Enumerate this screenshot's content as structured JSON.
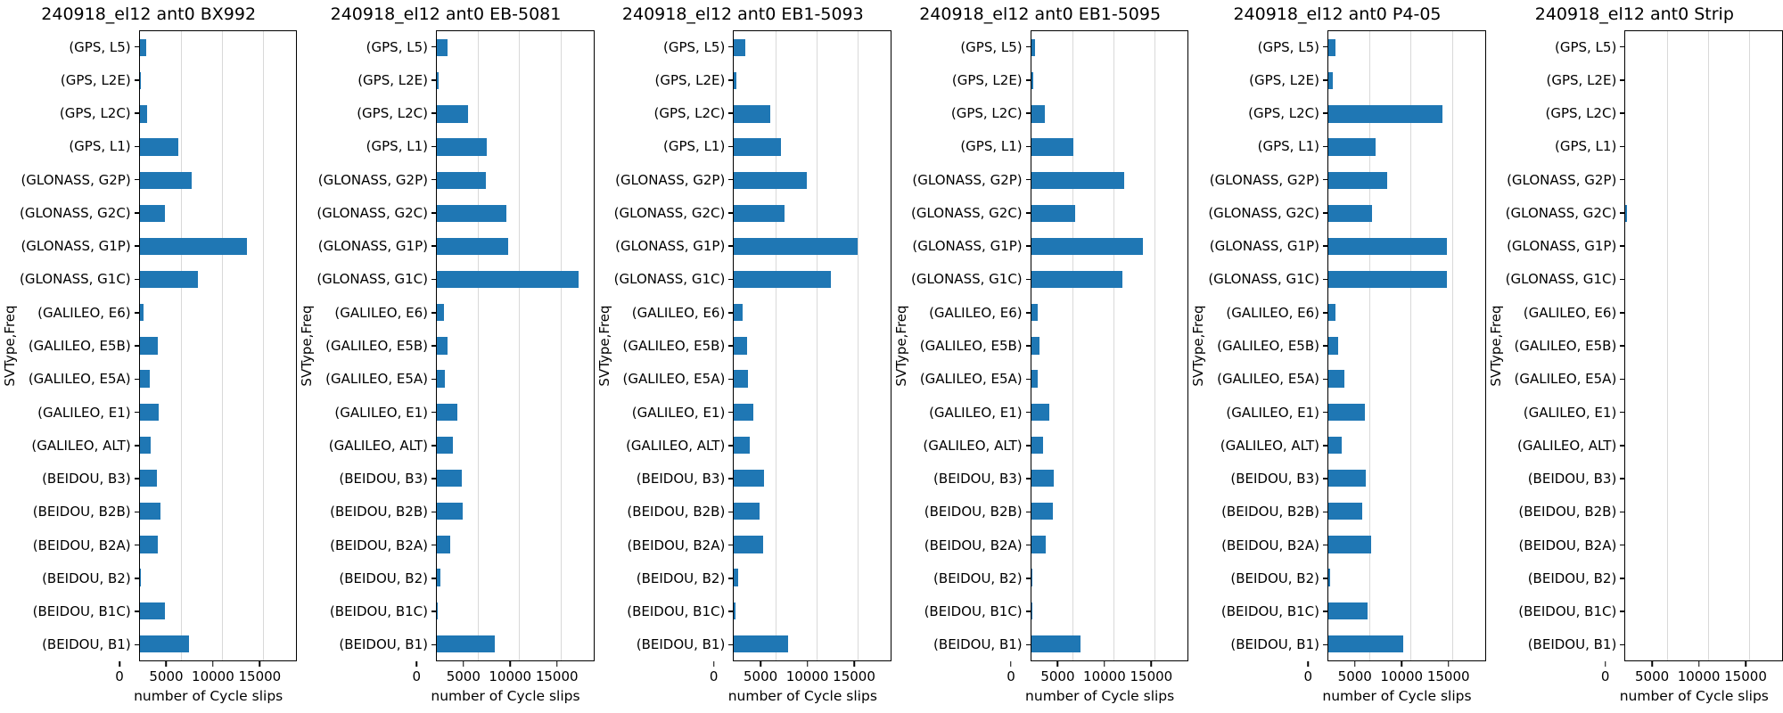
{
  "shared": {
    "ylabel": "SVType,Freq",
    "xlabel": "number of Cycle slips",
    "categories": [
      "(GPS, L5)",
      "(GPS, L2E)",
      "(GPS, L2C)",
      "(GPS, L1)",
      "(GLONASS, G2P)",
      "(GLONASS, G2C)",
      "(GLONASS, G1P)",
      "(GLONASS, G1C)",
      "(GALILEO, E6)",
      "(GALILEO, E5B)",
      "(GALILEO, E5A)",
      "(GALILEO, E1)",
      "(GALILEO, ALT)",
      "(BEIDOU, B3)",
      "(BEIDOU, B2B)",
      "(BEIDOU, B2A)",
      "(BEIDOU, B2)",
      "(BEIDOU, B1C)",
      "(BEIDOU, B1)"
    ],
    "xticks": [
      0,
      5000,
      10000,
      15000
    ],
    "xtick_labels": [
      "0",
      "5000",
      "10000",
      "15000"
    ],
    "xlim": [
      0,
      19000
    ],
    "bar_color": "#1f77b4",
    "grid": true,
    "legend": "none"
  },
  "chart_data": [
    {
      "type": "bar",
      "orientation": "horizontal",
      "title": "240918_el12 ant0 BX992",
      "values": [
        800,
        150,
        900,
        4700,
        6300,
        3100,
        13000,
        7100,
        500,
        2200,
        1200,
        2300,
        1300,
        2100,
        2500,
        2200,
        150,
        3100,
        6000
      ]
    },
    {
      "type": "bar",
      "orientation": "horizontal",
      "title": "240918_el12 ant0 EB-5081",
      "values": [
        1300,
        250,
        3800,
        6100,
        6000,
        8400,
        8700,
        17200,
        900,
        1300,
        1000,
        2500,
        1900,
        3000,
        3100,
        1600,
        400,
        100,
        7000
      ]
    },
    {
      "type": "bar",
      "orientation": "horizontal",
      "title": "240918_el12 ant0 EB1-5093",
      "values": [
        1400,
        250,
        4400,
        5700,
        8800,
        6100,
        15000,
        11800,
        1000,
        1550,
        1700,
        2300,
        1900,
        3600,
        3100,
        3500,
        500,
        150,
        6600
      ]
    },
    {
      "type": "bar",
      "orientation": "horizontal",
      "title": "240918_el12 ant0 EB1-5095",
      "values": [
        500,
        250,
        1700,
        5100,
        11300,
        5300,
        13600,
        11100,
        800,
        1000,
        800,
        2200,
        1400,
        2700,
        2600,
        1800,
        150,
        100,
        6000
      ]
    },
    {
      "type": "bar",
      "orientation": "horizontal",
      "title": "240918_el12 ant0 P4-05",
      "values": [
        900,
        500,
        13800,
        5700,
        7100,
        5300,
        14400,
        14400,
        900,
        1200,
        1900,
        4400,
        1600,
        4500,
        4100,
        5200,
        250,
        4800,
        9100
      ]
    },
    {
      "type": "bar",
      "orientation": "horizontal",
      "title": "240918_el12 ant0 Strip",
      "values": [
        0,
        0,
        0,
        0,
        0,
        150,
        0,
        0,
        0,
        0,
        0,
        0,
        0,
        0,
        0,
        0,
        0,
        0,
        0
      ]
    }
  ]
}
